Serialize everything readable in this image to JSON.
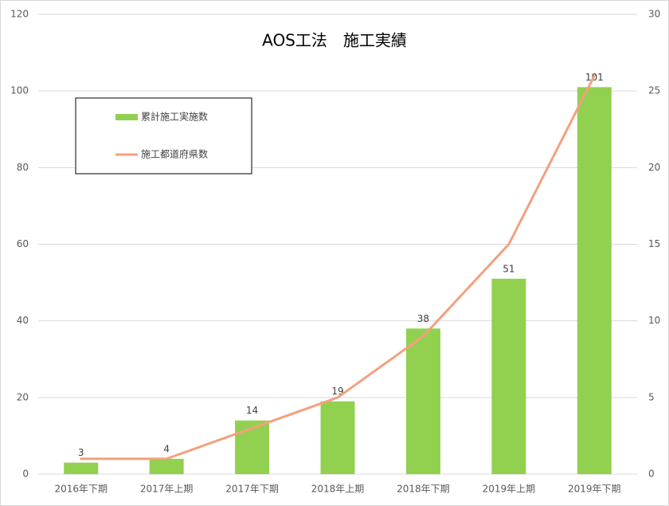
{
  "chart_data": {
    "type": "bar-line",
    "title": "AOS工法　施工実績",
    "categories": [
      "2016年下期",
      "2017年上期",
      "2017年下期",
      "2018年上期",
      "2018年下期",
      "2019年上期",
      "2019年下期"
    ],
    "series": [
      {
        "name": "累計施工実施数",
        "type": "bar",
        "color": "#92d050",
        "values": [
          3,
          4,
          14,
          19,
          38,
          51,
          101
        ]
      },
      {
        "name": "施工都道府県数",
        "type": "line",
        "color": "#f4a07e",
        "axis": "y2",
        "values": [
          1,
          1,
          3,
          5,
          9,
          15,
          26
        ]
      }
    ],
    "ylim": [
      0,
      120
    ],
    "yticks": [
      0,
      20,
      40,
      60,
      80,
      100,
      120
    ],
    "y2lim": [
      0,
      30
    ],
    "y2ticks": [
      0,
      5,
      10,
      15,
      20,
      25,
      30
    ],
    "grid": true,
    "legend": "upper-left"
  }
}
